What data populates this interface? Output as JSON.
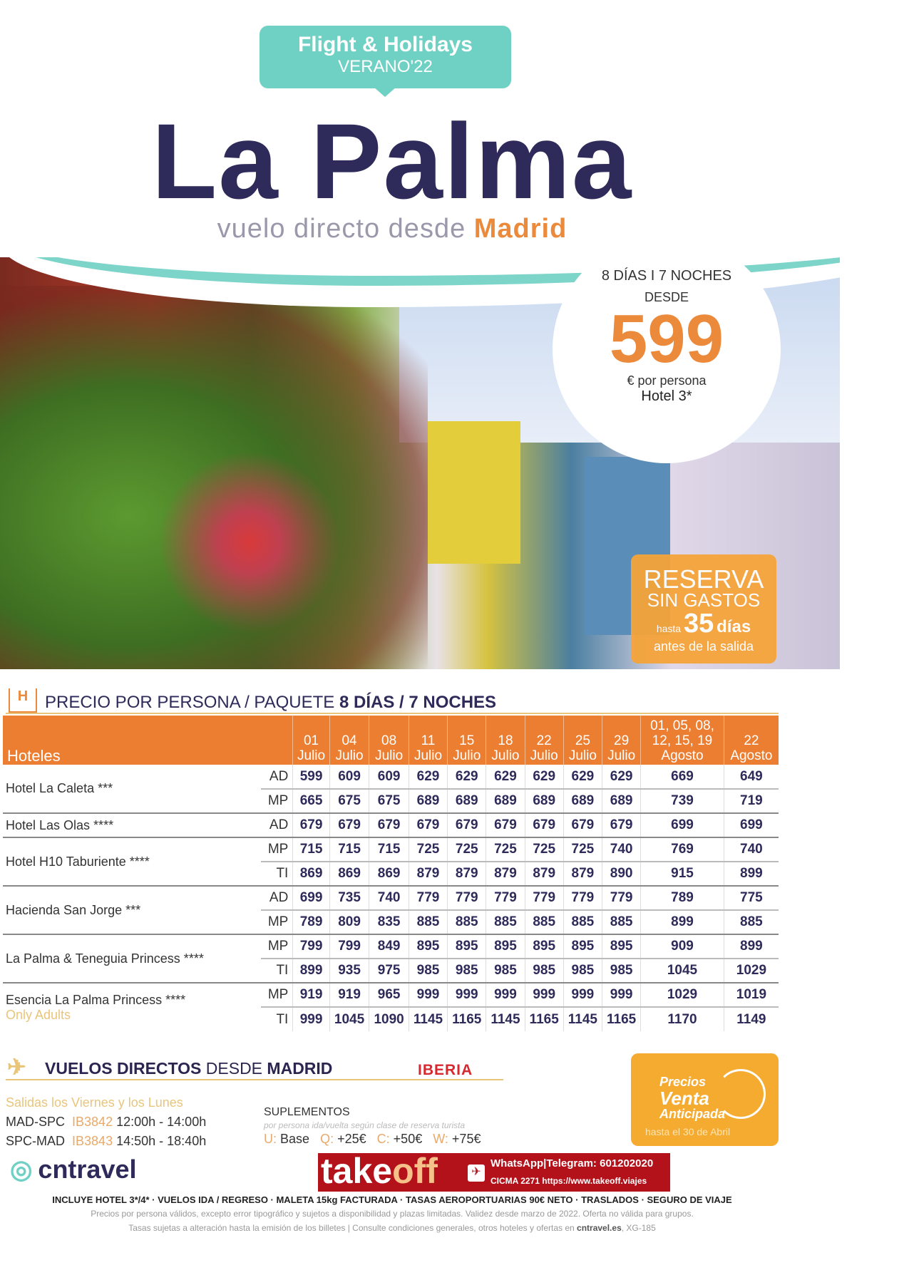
{
  "badge": {
    "line1": "Flight & Holidays",
    "line2": "VERANO'22"
  },
  "title": "La Palma",
  "subtitle": {
    "prefix": "vuelo directo desde ",
    "city": "Madrid"
  },
  "offer": {
    "duration": "8 DÍAS I 7 NOCHES",
    "from": "DESDE",
    "price": "599",
    "unit": "€ por persona",
    "hotel": "Hotel 3*"
  },
  "reserva": {
    "l1": "RESERVA",
    "l2": "SIN GASTOS",
    "hasta": "hasta",
    "days": "35",
    "dias": "días",
    "l4": "antes de la salida"
  },
  "table_section": {
    "icon": "hotel-icon",
    "prefix": "PRECIO POR PERSONA / PAQUETE ",
    "bold": "8 DÍAS / 7 NOCHES"
  },
  "table": {
    "hotel_header": "Hoteles",
    "columns": [
      [
        "01",
        "Julio"
      ],
      [
        "04",
        "Julio"
      ],
      [
        "08",
        "Julio"
      ],
      [
        "11",
        "Julio"
      ],
      [
        "15",
        "Julio"
      ],
      [
        "18",
        "Julio"
      ],
      [
        "22",
        "Julio"
      ],
      [
        "25",
        "Julio"
      ],
      [
        "29",
        "Julio"
      ],
      [
        "01, 05, 08,",
        "12, 15, 19",
        "Agosto"
      ],
      [
        "22",
        "Agosto"
      ]
    ],
    "hotels": [
      {
        "name": "Hotel La Caleta ***",
        "rows": [
          {
            "regime": "AD",
            "prices": [
              "599",
              "609",
              "609",
              "629",
              "629",
              "629",
              "629",
              "629",
              "629",
              "669",
              "649"
            ]
          },
          {
            "regime": "MP",
            "prices": [
              "665",
              "675",
              "675",
              "689",
              "689",
              "689",
              "689",
              "689",
              "689",
              "739",
              "719"
            ]
          }
        ]
      },
      {
        "name": "Hotel Las Olas ****",
        "rows": [
          {
            "regime": "AD",
            "prices": [
              "679",
              "679",
              "679",
              "679",
              "679",
              "679",
              "679",
              "679",
              "679",
              "699",
              "699"
            ]
          }
        ]
      },
      {
        "name": "Hotel H10 Taburiente ****",
        "rows": [
          {
            "regime": "MP",
            "prices": [
              "715",
              "715",
              "715",
              "725",
              "725",
              "725",
              "725",
              "725",
              "740",
              "769",
              "740"
            ]
          },
          {
            "regime": "TI",
            "prices": [
              "869",
              "869",
              "869",
              "879",
              "879",
              "879",
              "879",
              "879",
              "890",
              "915",
              "899"
            ]
          }
        ]
      },
      {
        "name": "Hacienda San Jorge ***",
        "rows": [
          {
            "regime": "AD",
            "prices": [
              "699",
              "735",
              "740",
              "779",
              "779",
              "779",
              "779",
              "779",
              "779",
              "789",
              "775"
            ]
          },
          {
            "regime": "MP",
            "prices": [
              "789",
              "809",
              "835",
              "885",
              "885",
              "885",
              "885",
              "885",
              "885",
              "899",
              "885"
            ]
          }
        ]
      },
      {
        "name": "La Palma & Teneguia Princess ****",
        "rows": [
          {
            "regime": "MP",
            "prices": [
              "799",
              "799",
              "849",
              "895",
              "895",
              "895",
              "895",
              "895",
              "895",
              "909",
              "899"
            ]
          },
          {
            "regime": "TI",
            "prices": [
              "899",
              "935",
              "975",
              "985",
              "985",
              "985",
              "985",
              "985",
              "985",
              "1045",
              "1029"
            ]
          }
        ]
      },
      {
        "name": "Esencia La Palma Princess ****",
        "note": "Only Adults",
        "rows": [
          {
            "regime": "MP",
            "prices": [
              "919",
              "919",
              "965",
              "999",
              "999",
              "999",
              "999",
              "999",
              "999",
              "1029",
              "1019"
            ]
          },
          {
            "regime": "TI",
            "prices": [
              "999",
              "1045",
              "1090",
              "1145",
              "1165",
              "1145",
              "1165",
              "1145",
              "1165",
              "1170",
              "1149"
            ]
          }
        ]
      }
    ]
  },
  "flights": {
    "icon": "airplane-icon",
    "title_b1": "VUELOS DIRECTOS",
    "title_n": " DESDE ",
    "title_b2": "MADRID",
    "airline": "IBERIA",
    "days": "Salidas los Viernes y los Lunes",
    "routes": [
      {
        "route": "MAD-SPC",
        "code": "IB3842",
        "time": "12:00h - 14:00h"
      },
      {
        "route": "SPC-MAD",
        "code": "IB3843",
        "time": "14:50h - 18:40h"
      }
    ]
  },
  "supplements": {
    "title": "SUPLEMENTOS",
    "note": "por persona ida/vuelta según clase de reserva turista",
    "items": [
      {
        "k": "U:",
        "v": "Base"
      },
      {
        "k": "Q:",
        "v": "+25€"
      },
      {
        "k": "C:",
        "v": "+50€"
      },
      {
        "k": "W:",
        "v": "+75€"
      }
    ]
  },
  "advance": {
    "l1": "Precios",
    "l2": "Venta",
    "l3": "Anticipada",
    "l4": "hasta el 30 de Abril",
    "icon": "clock-icon"
  },
  "brand": "cntravel",
  "takeoff": {
    "w1": "take",
    "w2": "off",
    "contact": "WhatsApp|Telegram: 601202020",
    "license": "CICMA 2271  https://www.takeoff.viajes"
  },
  "footer": {
    "includes": "INCLUYE HOTEL 3*/4* · VUELOS IDA / REGRESO · MALETA 15kg FACTURADA · TASAS AEROPORTUARIAS 90€ NETO · TRASLADOS · SEGURO DE VIAJE",
    "l1": "Precios por persona válidos, excepto error tipográfico y sujetos a disponibilidad y plazas limitadas. Validez desde marzo de 2022. Oferta no válida para grupos.",
    "l2a": "Tasas sujetas a alteración hasta la emisión de los billetes  |  Consulte condiciones generales, otros hoteles y ofertas en ",
    "l2b": "cntravel.es",
    ", XG": "",
    "l2c": ", XG-185"
  },
  "colors": {
    "orange": "#ec7e32",
    "teal": "#6fd0c4",
    "navy": "#2e2a5a",
    "gold": "#e9c57a"
  }
}
